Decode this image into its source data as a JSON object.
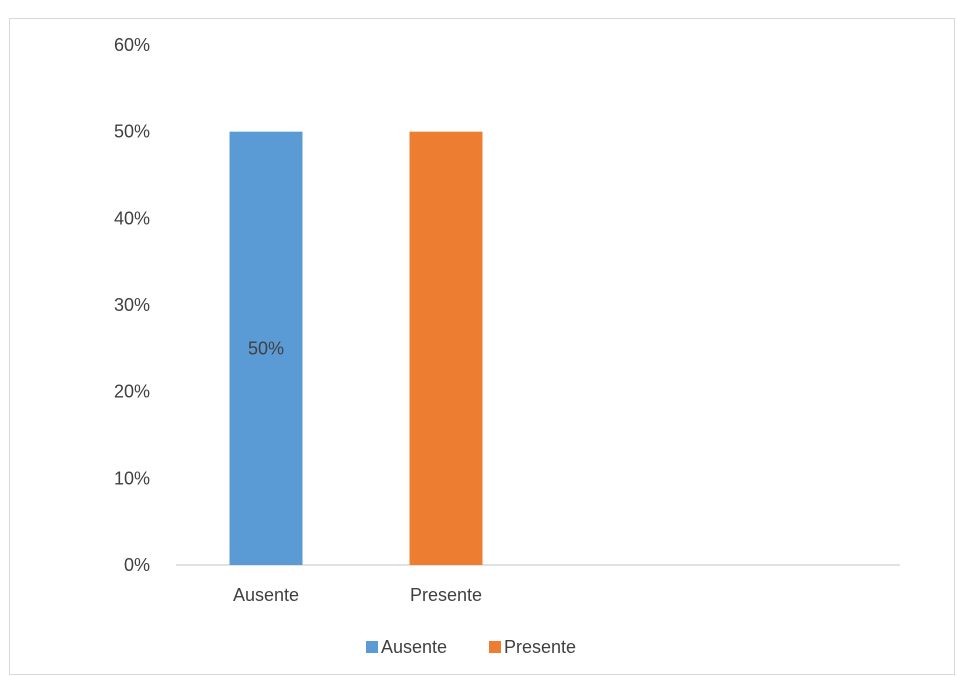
{
  "chart_data": {
    "type": "bar",
    "title": "",
    "xlabel": "",
    "ylabel": "",
    "categories": [
      "Ausente",
      "Presente"
    ],
    "values": [
      50,
      50
    ],
    "value_format": "percent",
    "ylim": [
      0,
      60
    ],
    "yticks": [
      0,
      10,
      20,
      30,
      40,
      50,
      60
    ],
    "ytick_labels": [
      "0%",
      "10%",
      "20%",
      "30%",
      "40%",
      "50%",
      "60%"
    ],
    "grid": false,
    "colors": [
      "#5b9bd5",
      "#ed7d31"
    ],
    "data_labels": [
      {
        "category": "Ausente",
        "text": "50%"
      }
    ],
    "legend": {
      "position": "bottom",
      "entries": [
        {
          "label": "Ausente",
          "color": "#5b9bd5"
        },
        {
          "label": "Presente",
          "color": "#ed7d31"
        }
      ]
    }
  }
}
